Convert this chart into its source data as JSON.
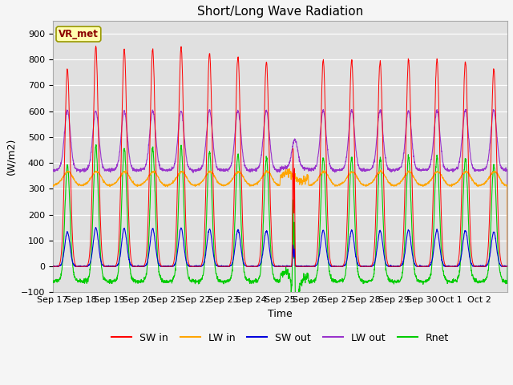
{
  "title": "Short/Long Wave Radiation",
  "ylabel": "(W/m2)",
  "xlabel": "Time",
  "ylim": [
    -100,
    950
  ],
  "yticks": [
    -100,
    0,
    100,
    200,
    300,
    400,
    500,
    600,
    700,
    800,
    900
  ],
  "num_days": 16,
  "colors": {
    "SW_in": "#ff0000",
    "LW_in": "#ffa500",
    "SW_out": "#0000dd",
    "LW_out": "#9933cc",
    "Rnet": "#00cc00"
  },
  "tick_labels": [
    "Sep 17",
    "Sep 18",
    "Sep 19",
    "Sep 20",
    "Sep 21",
    "Sep 22",
    "Sep 23",
    "Sep 24",
    "Sep 25",
    "Sep 26",
    "Sep 27",
    "Sep 28",
    "Sep 29",
    "Sep 30",
    "Oct 1",
    "Oct 2"
  ],
  "station_label": "VR_met",
  "plot_bg": "#e0e0e0",
  "fig_bg": "#f5f5f5",
  "title_fontsize": 11,
  "label_fontsize": 9,
  "tick_fontsize": 8
}
